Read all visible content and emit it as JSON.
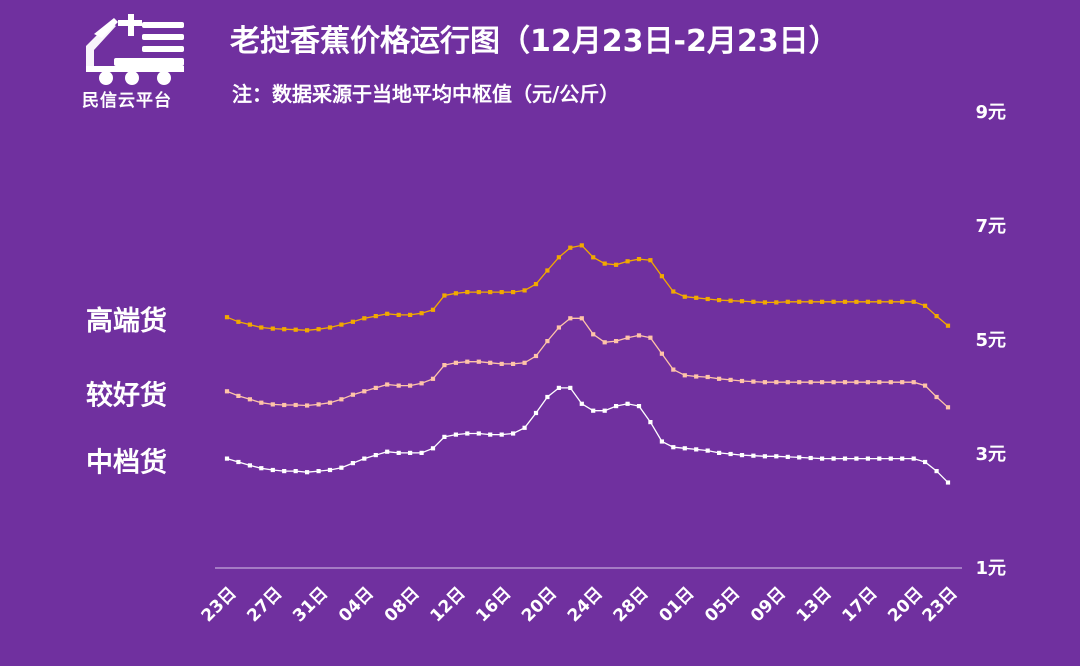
{
  "branding": {
    "name": "民信云平台",
    "logo_icon": "truck-icon"
  },
  "header": {
    "title": "老挝香蕉价格运行图（12月23日-2月23日）",
    "note": "注：数据采源于当地平均中枢值（元/公斤）"
  },
  "colors": {
    "background": "#70309f",
    "high": "#f2a900",
    "good": "#ffc4a8",
    "mid": "#ffffff"
  },
  "chart_data": {
    "type": "line",
    "title": "老挝香蕉价格运行图（12月23日-2月23日）",
    "subtitle": "注：数据采源于当地平均中枢值（元/公斤）",
    "ylim": [
      1,
      9
    ],
    "y_ticks": [
      "1元",
      "3元",
      "5元",
      "7元",
      "9元"
    ],
    "y_tick_values": [
      1,
      3,
      5,
      7,
      9
    ],
    "x_tick_labels": [
      "23日",
      "27日",
      "31日",
      "04日",
      "08日",
      "12日",
      "16日",
      "20日",
      "24日",
      "28日",
      "01日",
      "05日",
      "09日",
      "13日",
      "17日",
      "20日",
      "23日"
    ],
    "x_tick_positions": [
      0,
      4,
      8,
      12,
      16,
      20,
      24,
      28,
      32,
      36,
      40,
      44,
      48,
      52,
      56,
      60,
      63
    ],
    "n_points": 64,
    "legend": "left",
    "grid": false,
    "series": [
      {
        "name": "高端货",
        "color": "#f2a900",
        "values": [
          5.4,
          5.32,
          5.27,
          5.22,
          5.2,
          5.19,
          5.18,
          5.17,
          5.19,
          5.22,
          5.27,
          5.32,
          5.38,
          5.42,
          5.46,
          5.44,
          5.44,
          5.47,
          5.53,
          5.78,
          5.82,
          5.84,
          5.84,
          5.84,
          5.84,
          5.84,
          5.87,
          5.98,
          6.22,
          6.45,
          6.62,
          6.66,
          6.45,
          6.34,
          6.32,
          6.38,
          6.42,
          6.4,
          6.12,
          5.85,
          5.76,
          5.74,
          5.72,
          5.7,
          5.69,
          5.68,
          5.67,
          5.66,
          5.66,
          5.67,
          5.67,
          5.67,
          5.67,
          5.67,
          5.67,
          5.67,
          5.67,
          5.67,
          5.67,
          5.67,
          5.67,
          5.6,
          5.42,
          5.25
        ]
      },
      {
        "name": "较好货",
        "color": "#ffc4a8",
        "values": [
          4.1,
          4.02,
          3.96,
          3.9,
          3.87,
          3.86,
          3.86,
          3.85,
          3.87,
          3.9,
          3.96,
          4.04,
          4.1,
          4.16,
          4.22,
          4.2,
          4.2,
          4.24,
          4.32,
          4.56,
          4.6,
          4.62,
          4.62,
          4.6,
          4.58,
          4.58,
          4.6,
          4.72,
          4.98,
          5.22,
          5.38,
          5.38,
          5.1,
          4.96,
          4.98,
          5.04,
          5.08,
          5.04,
          4.76,
          4.48,
          4.38,
          4.36,
          4.35,
          4.32,
          4.3,
          4.28,
          4.27,
          4.26,
          4.26,
          4.26,
          4.26,
          4.26,
          4.26,
          4.26,
          4.26,
          4.26,
          4.26,
          4.26,
          4.26,
          4.26,
          4.26,
          4.2,
          4.0,
          3.82
        ]
      },
      {
        "name": "中档货",
        "color": "#ffffff",
        "values": [
          2.92,
          2.86,
          2.8,
          2.75,
          2.72,
          2.7,
          2.7,
          2.68,
          2.7,
          2.72,
          2.76,
          2.84,
          2.92,
          2.98,
          3.04,
          3.02,
          3.02,
          3.02,
          3.1,
          3.3,
          3.34,
          3.36,
          3.36,
          3.34,
          3.34,
          3.36,
          3.46,
          3.72,
          4.0,
          4.16,
          4.16,
          3.88,
          3.76,
          3.76,
          3.84,
          3.88,
          3.84,
          3.56,
          3.22,
          3.12,
          3.1,
          3.08,
          3.06,
          3.02,
          3.0,
          2.98,
          2.97,
          2.96,
          2.96,
          2.95,
          2.94,
          2.93,
          2.92,
          2.92,
          2.92,
          2.92,
          2.92,
          2.92,
          2.92,
          2.92,
          2.92,
          2.86,
          2.7,
          2.5
        ]
      }
    ]
  }
}
